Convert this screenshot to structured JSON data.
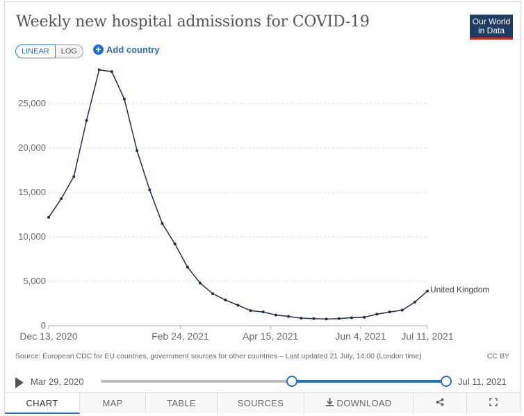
{
  "header": {
    "title": "Weekly new hospital admissions for COVID-19",
    "logo": [
      "Our World",
      "in Data"
    ]
  },
  "controls": {
    "scale_linear": "LINEAR",
    "scale_log": "LOG",
    "add_country": "Add country"
  },
  "chart_data": {
    "type": "line",
    "title": "Weekly new hospital admissions for COVID-19",
    "x_start": "2020-12-13",
    "x_end": "2021-07-11",
    "x_ticks": [
      "Dec 13, 2020",
      "Feb 24, 2021",
      "Apr 15, 2021",
      "Jun 4, 2021",
      "Jul 11, 2021"
    ],
    "y_ticks": [
      "0",
      "5,000",
      "10,000",
      "15,000",
      "20,000",
      "25,000"
    ],
    "ylim": [
      0,
      29000
    ],
    "grid": true,
    "series": [
      {
        "name": "United Kingdom",
        "color": "#1f2d4d",
        "x": [
          "2020-12-13",
          "2020-12-20",
          "2020-12-27",
          "2021-01-03",
          "2021-01-10",
          "2021-01-17",
          "2021-01-24",
          "2021-01-31",
          "2021-02-07",
          "2021-02-14",
          "2021-02-21",
          "2021-02-28",
          "2021-03-07",
          "2021-03-14",
          "2021-03-21",
          "2021-03-28",
          "2021-04-04",
          "2021-04-11",
          "2021-04-18",
          "2021-04-25",
          "2021-05-02",
          "2021-05-09",
          "2021-05-16",
          "2021-05-23",
          "2021-05-30",
          "2021-06-06",
          "2021-06-13",
          "2021-06-20",
          "2021-06-27",
          "2021-07-04",
          "2021-07-11"
        ],
        "values": [
          12200,
          14300,
          16800,
          23100,
          28800,
          28600,
          25500,
          19700,
          15300,
          11500,
          9200,
          6600,
          4800,
          3600,
          2900,
          2300,
          1700,
          1550,
          1200,
          1050,
          850,
          800,
          750,
          800,
          900,
          950,
          1300,
          1550,
          1750,
          2650,
          3900
        ]
      }
    ]
  },
  "footer": {
    "source": "Source: European CDC for EU countries, government sources for other countries – Last updated 21 July, 14:00 (London time)",
    "license": "CC BY"
  },
  "timeline": {
    "start_label": "Mar 29, 2020",
    "end_label": "Jul 11, 2021"
  },
  "tabs": [
    {
      "label": "CHART",
      "active": true
    },
    {
      "label": "MAP"
    },
    {
      "label": "TABLE"
    },
    {
      "label": "SOURCES"
    },
    {
      "label": "DOWNLOAD",
      "icon": "download-icon"
    },
    {
      "label": "",
      "icon": "share-icon"
    },
    {
      "label": "",
      "icon": "fullscreen-icon"
    }
  ]
}
